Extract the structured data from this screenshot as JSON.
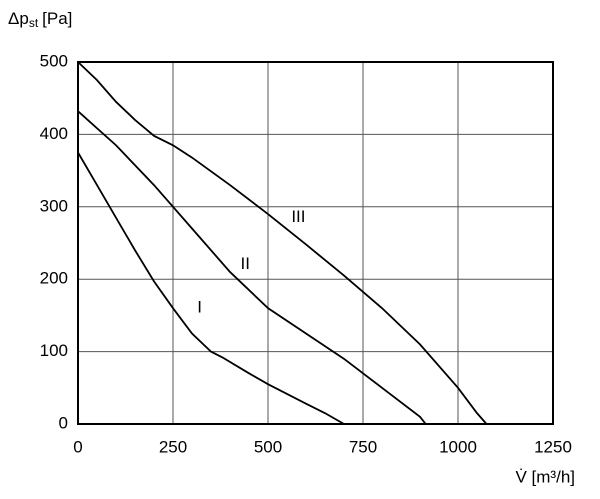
{
  "chart_data": {
    "type": "line",
    "y_label": {
      "main": "Δp",
      "sub": "st",
      "unit": "[Pa]"
    },
    "x_label": "V̇ [m³/h]",
    "xlim": [
      0,
      1250
    ],
    "xticks": [
      0,
      250,
      500,
      750,
      1000,
      1250
    ],
    "ylim": [
      0,
      500
    ],
    "yticks": [
      0,
      100,
      200,
      300,
      400,
      500
    ],
    "grid": true,
    "series": [
      {
        "name": "I",
        "color": "#000000",
        "x": [
          0,
          50,
          100,
          150,
          200,
          250,
          300,
          350,
          380,
          450,
          500,
          600,
          650,
          700
        ],
        "values": [
          375,
          330,
          285,
          240,
          197,
          160,
          125,
          100,
          92,
          70,
          55,
          28,
          15,
          0
        ]
      },
      {
        "name": "II",
        "color": "#000000",
        "x": [
          0,
          100,
          200,
          300,
          400,
          500,
          600,
          700,
          800,
          900,
          915
        ],
        "values": [
          432,
          385,
          330,
          270,
          210,
          160,
          125,
          90,
          50,
          10,
          0
        ]
      },
      {
        "name": "III",
        "color": "#000000",
        "x": [
          0,
          50,
          100,
          150,
          200,
          250,
          300,
          400,
          500,
          600,
          700,
          800,
          900,
          1000,
          1050,
          1075
        ],
        "values": [
          500,
          475,
          445,
          420,
          398,
          385,
          368,
          330,
          290,
          248,
          205,
          160,
          110,
          50,
          15,
          0
        ]
      }
    ]
  }
}
